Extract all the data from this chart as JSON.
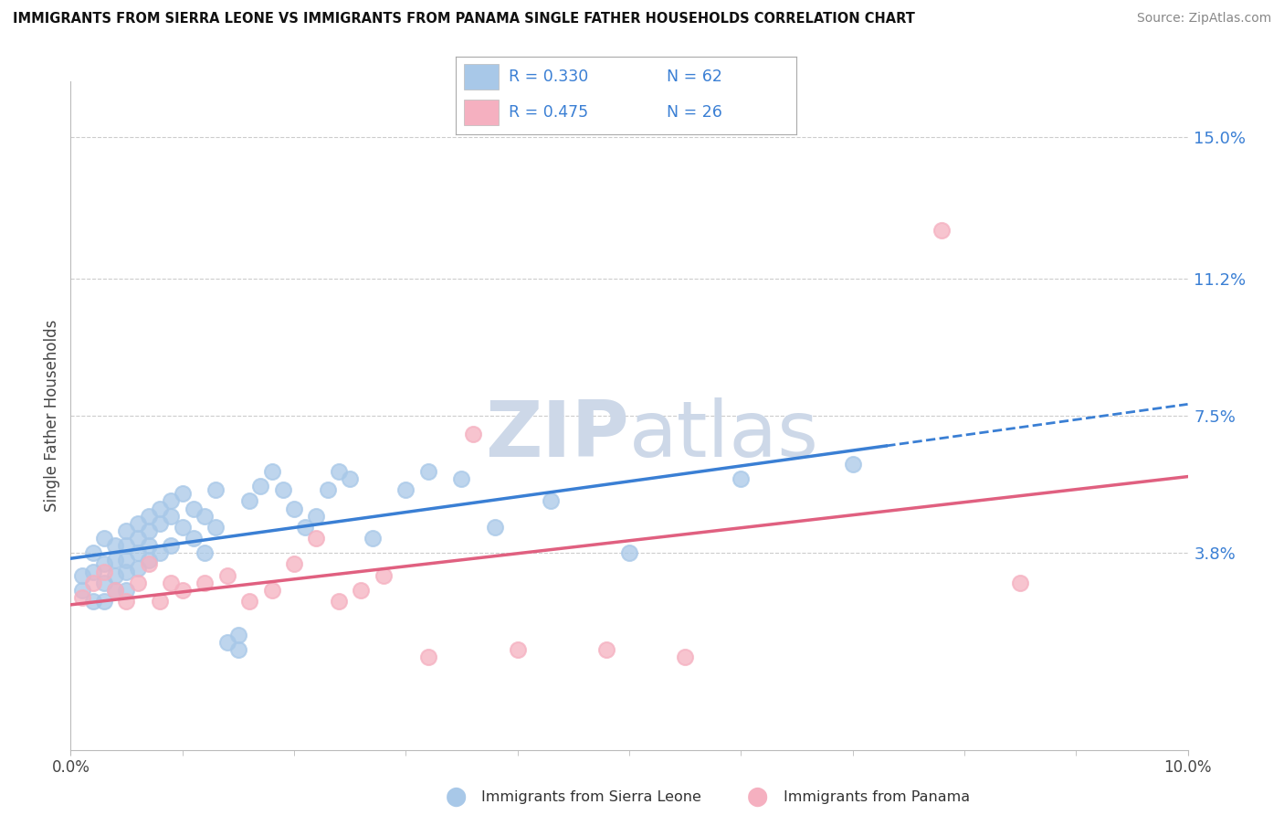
{
  "title": "IMMIGRANTS FROM SIERRA LEONE VS IMMIGRANTS FROM PANAMA SINGLE FATHER HOUSEHOLDS CORRELATION CHART",
  "source": "Source: ZipAtlas.com",
  "ylabel": "Single Father Households",
  "ytick_labels": [
    "3.8%",
    "7.5%",
    "11.2%",
    "15.0%"
  ],
  "ytick_values": [
    0.038,
    0.075,
    0.112,
    0.15
  ],
  "xlim": [
    0.0,
    0.1
  ],
  "ylim": [
    -0.015,
    0.165
  ],
  "sierra_leone_R": 0.33,
  "sierra_leone_N": 62,
  "panama_R": 0.475,
  "panama_N": 26,
  "sierra_leone_color": "#a8c8e8",
  "panama_color": "#f5b0c0",
  "sierra_leone_line_color": "#3a7fd4",
  "panama_line_color": "#e06080",
  "watermark_zip": "ZIP",
  "watermark_atlas": "atlas",
  "watermark_color": "#cdd8e8",
  "legend_text_color": "#3a7fd4",
  "sierra_leone_x": [
    0.001,
    0.001,
    0.002,
    0.002,
    0.002,
    0.003,
    0.003,
    0.003,
    0.003,
    0.004,
    0.004,
    0.004,
    0.004,
    0.005,
    0.005,
    0.005,
    0.005,
    0.005,
    0.006,
    0.006,
    0.006,
    0.006,
    0.007,
    0.007,
    0.007,
    0.007,
    0.008,
    0.008,
    0.008,
    0.009,
    0.009,
    0.009,
    0.01,
    0.01,
    0.011,
    0.011,
    0.012,
    0.012,
    0.013,
    0.013,
    0.014,
    0.015,
    0.015,
    0.016,
    0.017,
    0.018,
    0.019,
    0.02,
    0.021,
    0.022,
    0.023,
    0.024,
    0.025,
    0.027,
    0.03,
    0.032,
    0.035,
    0.038,
    0.043,
    0.05,
    0.06,
    0.07
  ],
  "sierra_leone_y": [
    0.032,
    0.028,
    0.038,
    0.033,
    0.025,
    0.042,
    0.035,
    0.03,
    0.025,
    0.04,
    0.036,
    0.032,
    0.028,
    0.044,
    0.04,
    0.036,
    0.033,
    0.028,
    0.046,
    0.042,
    0.038,
    0.034,
    0.048,
    0.044,
    0.04,
    0.036,
    0.05,
    0.046,
    0.038,
    0.052,
    0.048,
    0.04,
    0.054,
    0.045,
    0.05,
    0.042,
    0.048,
    0.038,
    0.055,
    0.045,
    0.014,
    0.012,
    0.016,
    0.052,
    0.056,
    0.06,
    0.055,
    0.05,
    0.045,
    0.048,
    0.055,
    0.06,
    0.058,
    0.042,
    0.055,
    0.06,
    0.058,
    0.045,
    0.052,
    0.038,
    0.058,
    0.062
  ],
  "panama_x": [
    0.001,
    0.002,
    0.003,
    0.004,
    0.005,
    0.006,
    0.007,
    0.008,
    0.009,
    0.01,
    0.012,
    0.014,
    0.016,
    0.018,
    0.02,
    0.022,
    0.024,
    0.026,
    0.028,
    0.032,
    0.036,
    0.04,
    0.048,
    0.055,
    0.078,
    0.085
  ],
  "panama_y": [
    0.026,
    0.03,
    0.033,
    0.028,
    0.025,
    0.03,
    0.035,
    0.025,
    0.03,
    0.028,
    0.03,
    0.032,
    0.025,
    0.028,
    0.035,
    0.042,
    0.025,
    0.028,
    0.032,
    0.01,
    0.07,
    0.012,
    0.012,
    0.01,
    0.125,
    0.03
  ]
}
